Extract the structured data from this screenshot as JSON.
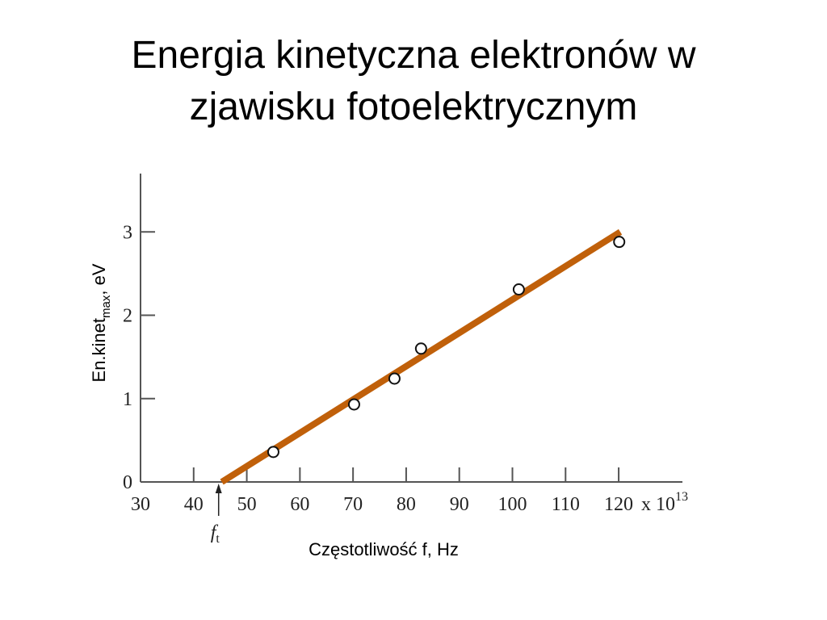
{
  "chart_data": {
    "type": "scatter",
    "title": [
      "Energia kinetyczna elektronów w",
      "zjawisku fotoelektrycznym"
    ],
    "x_label": "Częstotliwość  f, Hz",
    "y_label": {
      "text": "En.kinet",
      "subscript": "max",
      "suffix": ", eV"
    },
    "x_unit": {
      "text": "x 10",
      "superscript": "13"
    },
    "points": {
      "x": [
        55,
        70.2,
        77.8,
        82.8,
        101.2,
        120.1
      ],
      "y": [
        0.36,
        0.93,
        1.24,
        1.6,
        2.31,
        2.88
      ]
    },
    "fit_line": {
      "x": [
        45.3,
        120.3
      ],
      "y": [
        0,
        3
      ],
      "color": "#c0600a"
    },
    "threshold": {
      "value": 44.7,
      "label": "f",
      "subscript": "t"
    },
    "xlim": [
      30,
      132
    ],
    "ylim": [
      0,
      3.7
    ],
    "xticks": [
      30,
      40,
      50,
      60,
      70,
      80,
      90,
      100,
      110,
      120
    ],
    "yticks": [
      0,
      1,
      2,
      3
    ]
  }
}
